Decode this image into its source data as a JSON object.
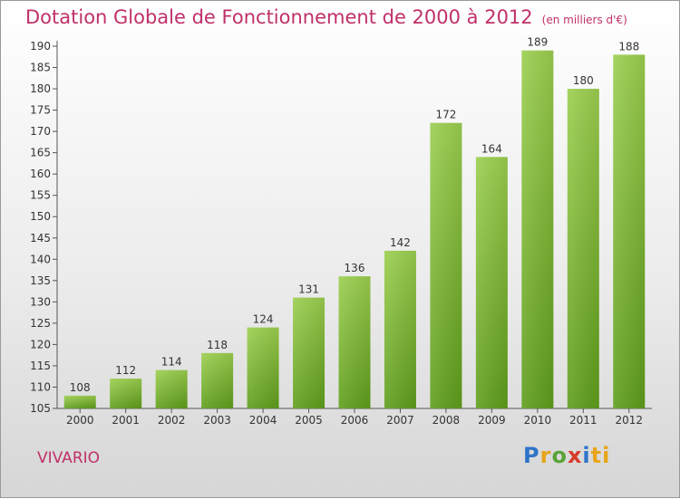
{
  "header": {
    "title": "Dotation Globale de Fonctionnement de 2000 à 2012",
    "subtitle": "(en milliers d'€)"
  },
  "footer": {
    "place": "VIVARIO",
    "logo": [
      "P",
      "r",
      "o",
      "x",
      "i",
      "ti"
    ]
  },
  "colors": {
    "title": "#c0306a",
    "bar_top": "#9ccf4f",
    "bar_bottom": "#5f9e1c"
  },
  "chart_data": {
    "type": "bar",
    "title": "Dotation Globale de Fonctionnement de 2000 à 2012",
    "subtitle": "(en milliers d'€)",
    "xlabel": "",
    "ylabel": "",
    "categories": [
      "2000",
      "2001",
      "2002",
      "2003",
      "2004",
      "2005",
      "2006",
      "2007",
      "2008",
      "2009",
      "2010",
      "2011",
      "2012"
    ],
    "values": [
      108,
      112,
      114,
      118,
      124,
      131,
      136,
      142,
      172,
      164,
      189,
      180,
      188
    ],
    "ylim": [
      105,
      190
    ],
    "yticks": [
      105,
      110,
      115,
      120,
      125,
      130,
      135,
      140,
      145,
      150,
      155,
      160,
      165,
      170,
      175,
      180,
      185,
      190
    ],
    "grid": false,
    "legend": "none"
  }
}
